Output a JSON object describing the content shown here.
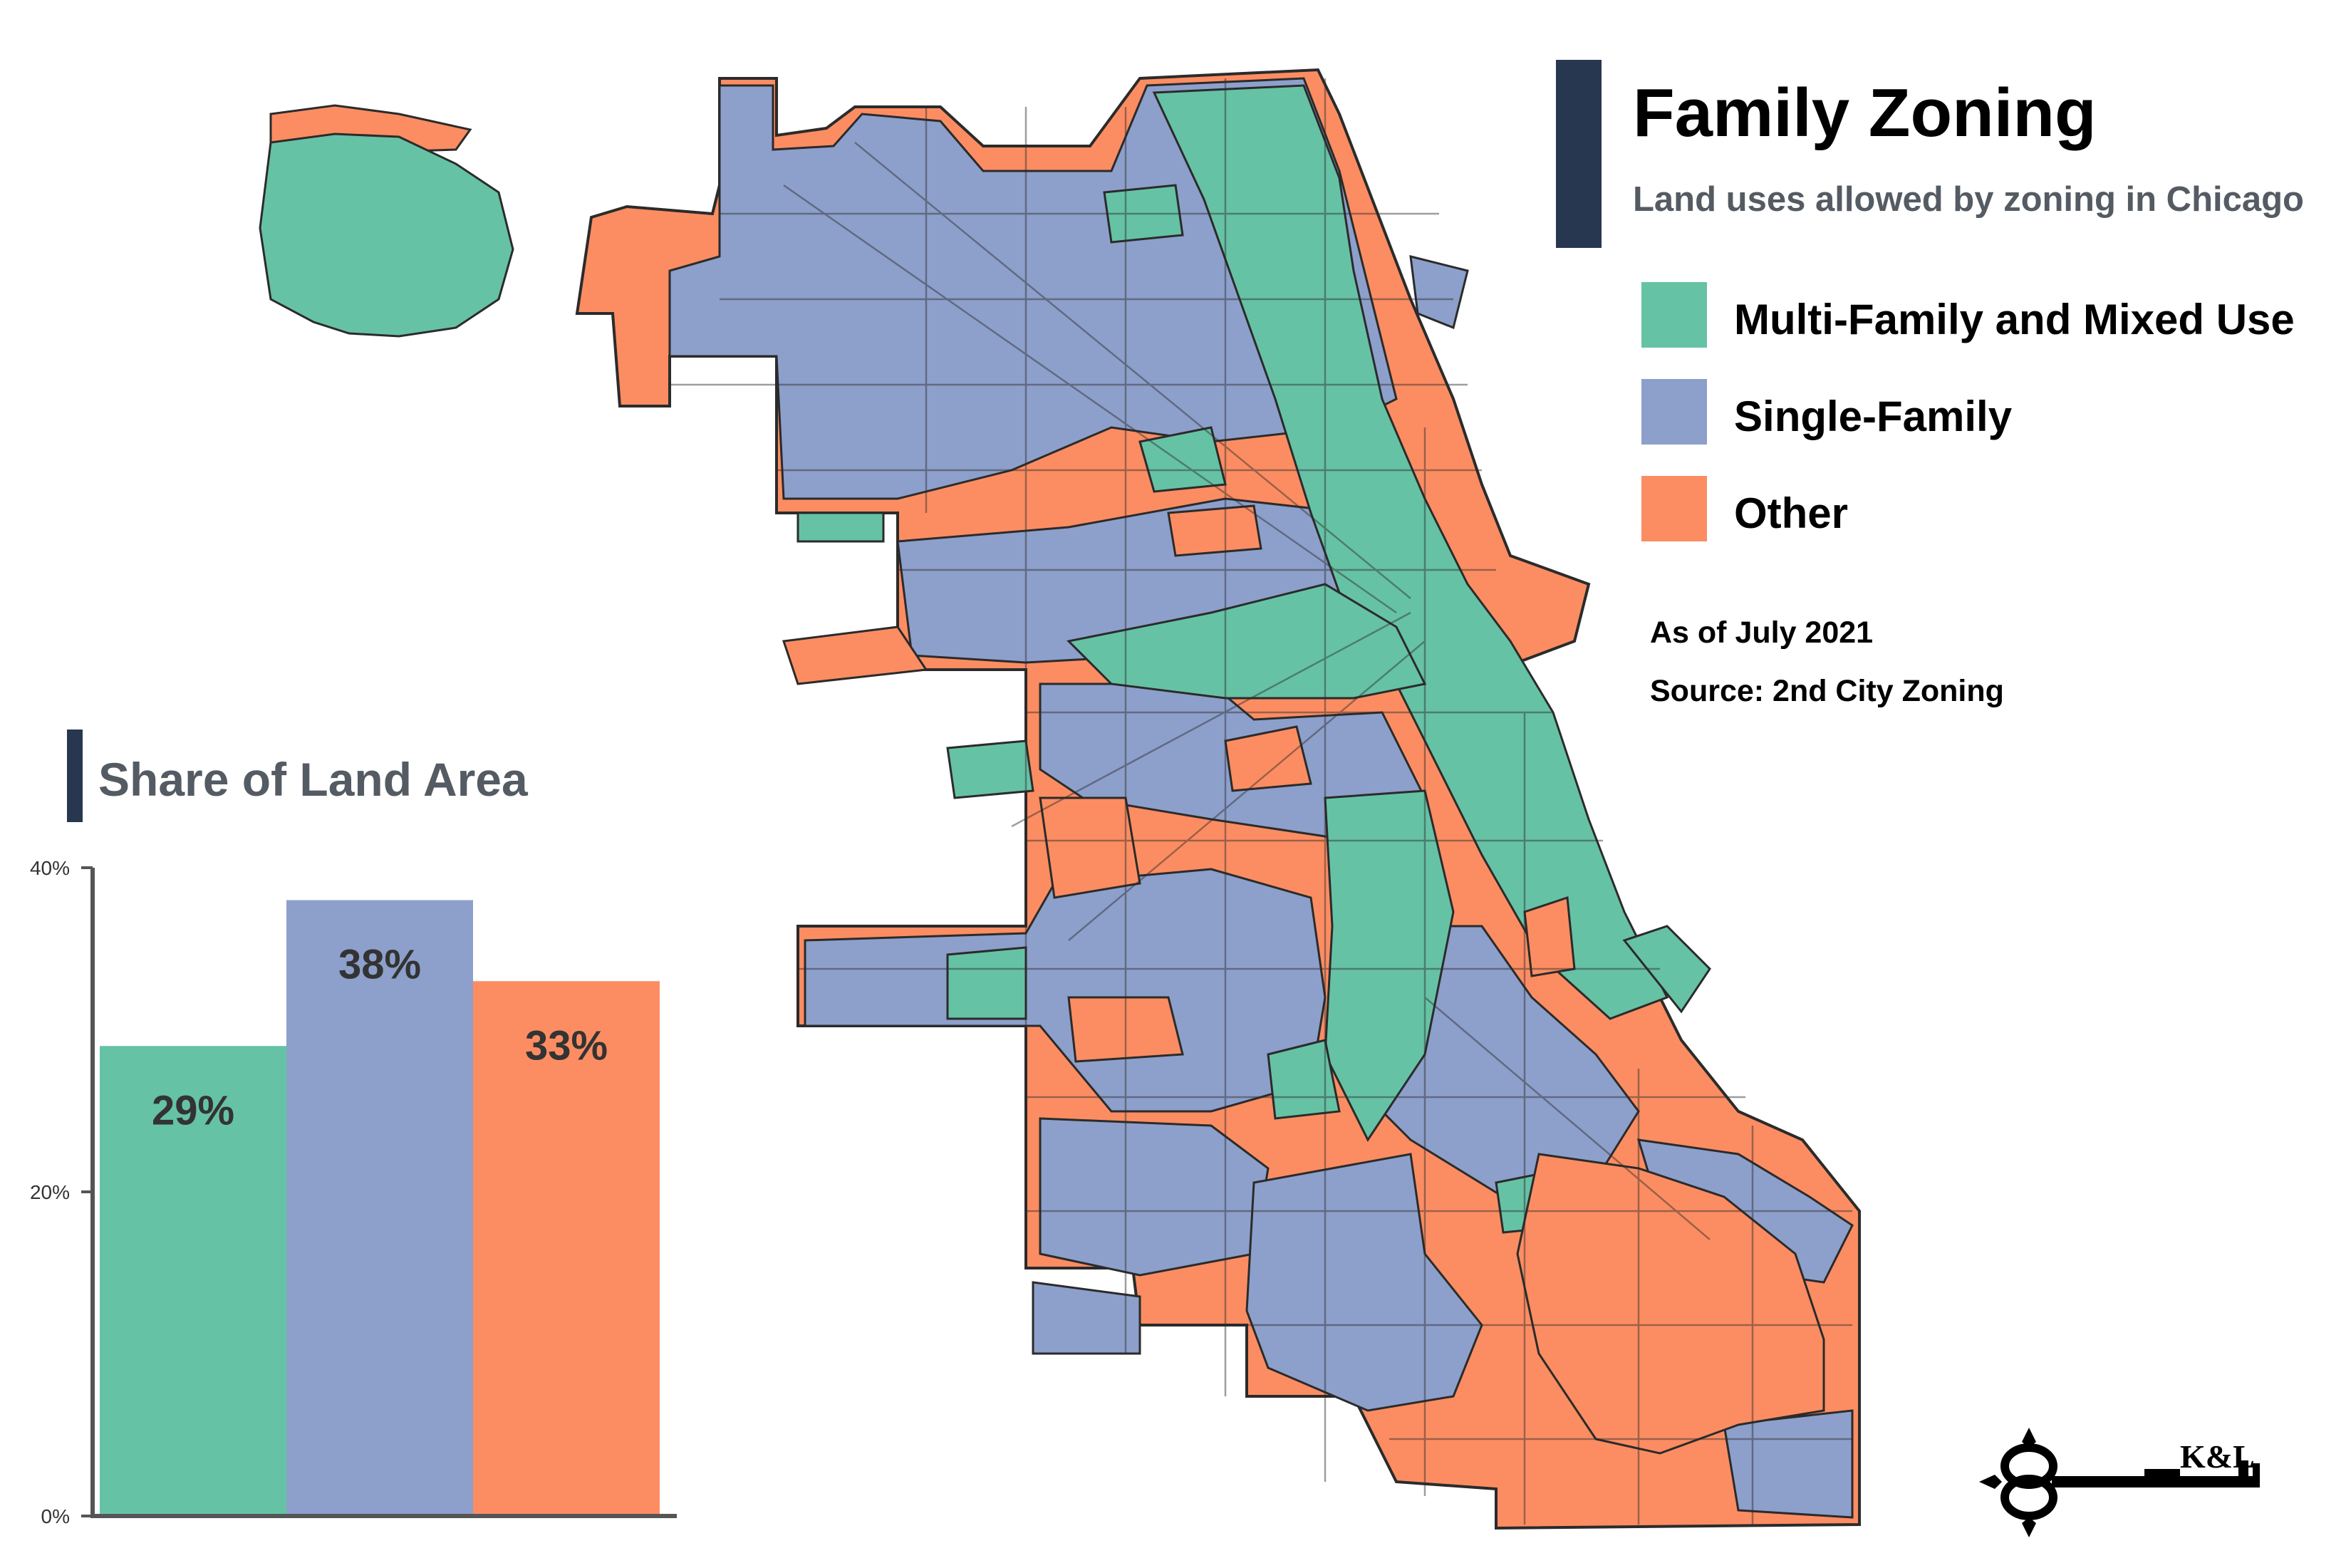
{
  "header": {
    "title": "Family Zoning",
    "subtitle": "Land uses allowed by zoning in Chicago"
  },
  "legend": [
    {
      "label": "Multi-Family and Mixed Use",
      "color": "#66c2a5"
    },
    {
      "label": "Single-Family",
      "color": "#8da0cb"
    },
    {
      "label": "Other",
      "color": "#fc8d62"
    }
  ],
  "notes": {
    "as_of": "As of July 2021",
    "source": "Source: 2nd City Zoning"
  },
  "map": {
    "region": "Chicago",
    "categories": [
      "Multi-Family and Mixed Use",
      "Single-Family",
      "Other"
    ]
  },
  "chart_data": {
    "type": "bar",
    "title": "Share of Land Area",
    "categories": [
      "Multi-Family and Mixed Use",
      "Single-Family",
      "Other"
    ],
    "values": [
      29,
      38,
      33
    ],
    "data_labels": [
      "29%",
      "38%",
      "33%"
    ],
    "colors": [
      "#66c2a5",
      "#8da0cb",
      "#fc8d62"
    ],
    "ylim": [
      0,
      40
    ],
    "yticks": [
      0,
      20,
      40
    ],
    "ytick_labels": [
      "0%",
      "20%",
      "40%"
    ],
    "grid": false,
    "legend": "none"
  },
  "logo": {
    "text": "K&L",
    "icon": "key-icon"
  }
}
